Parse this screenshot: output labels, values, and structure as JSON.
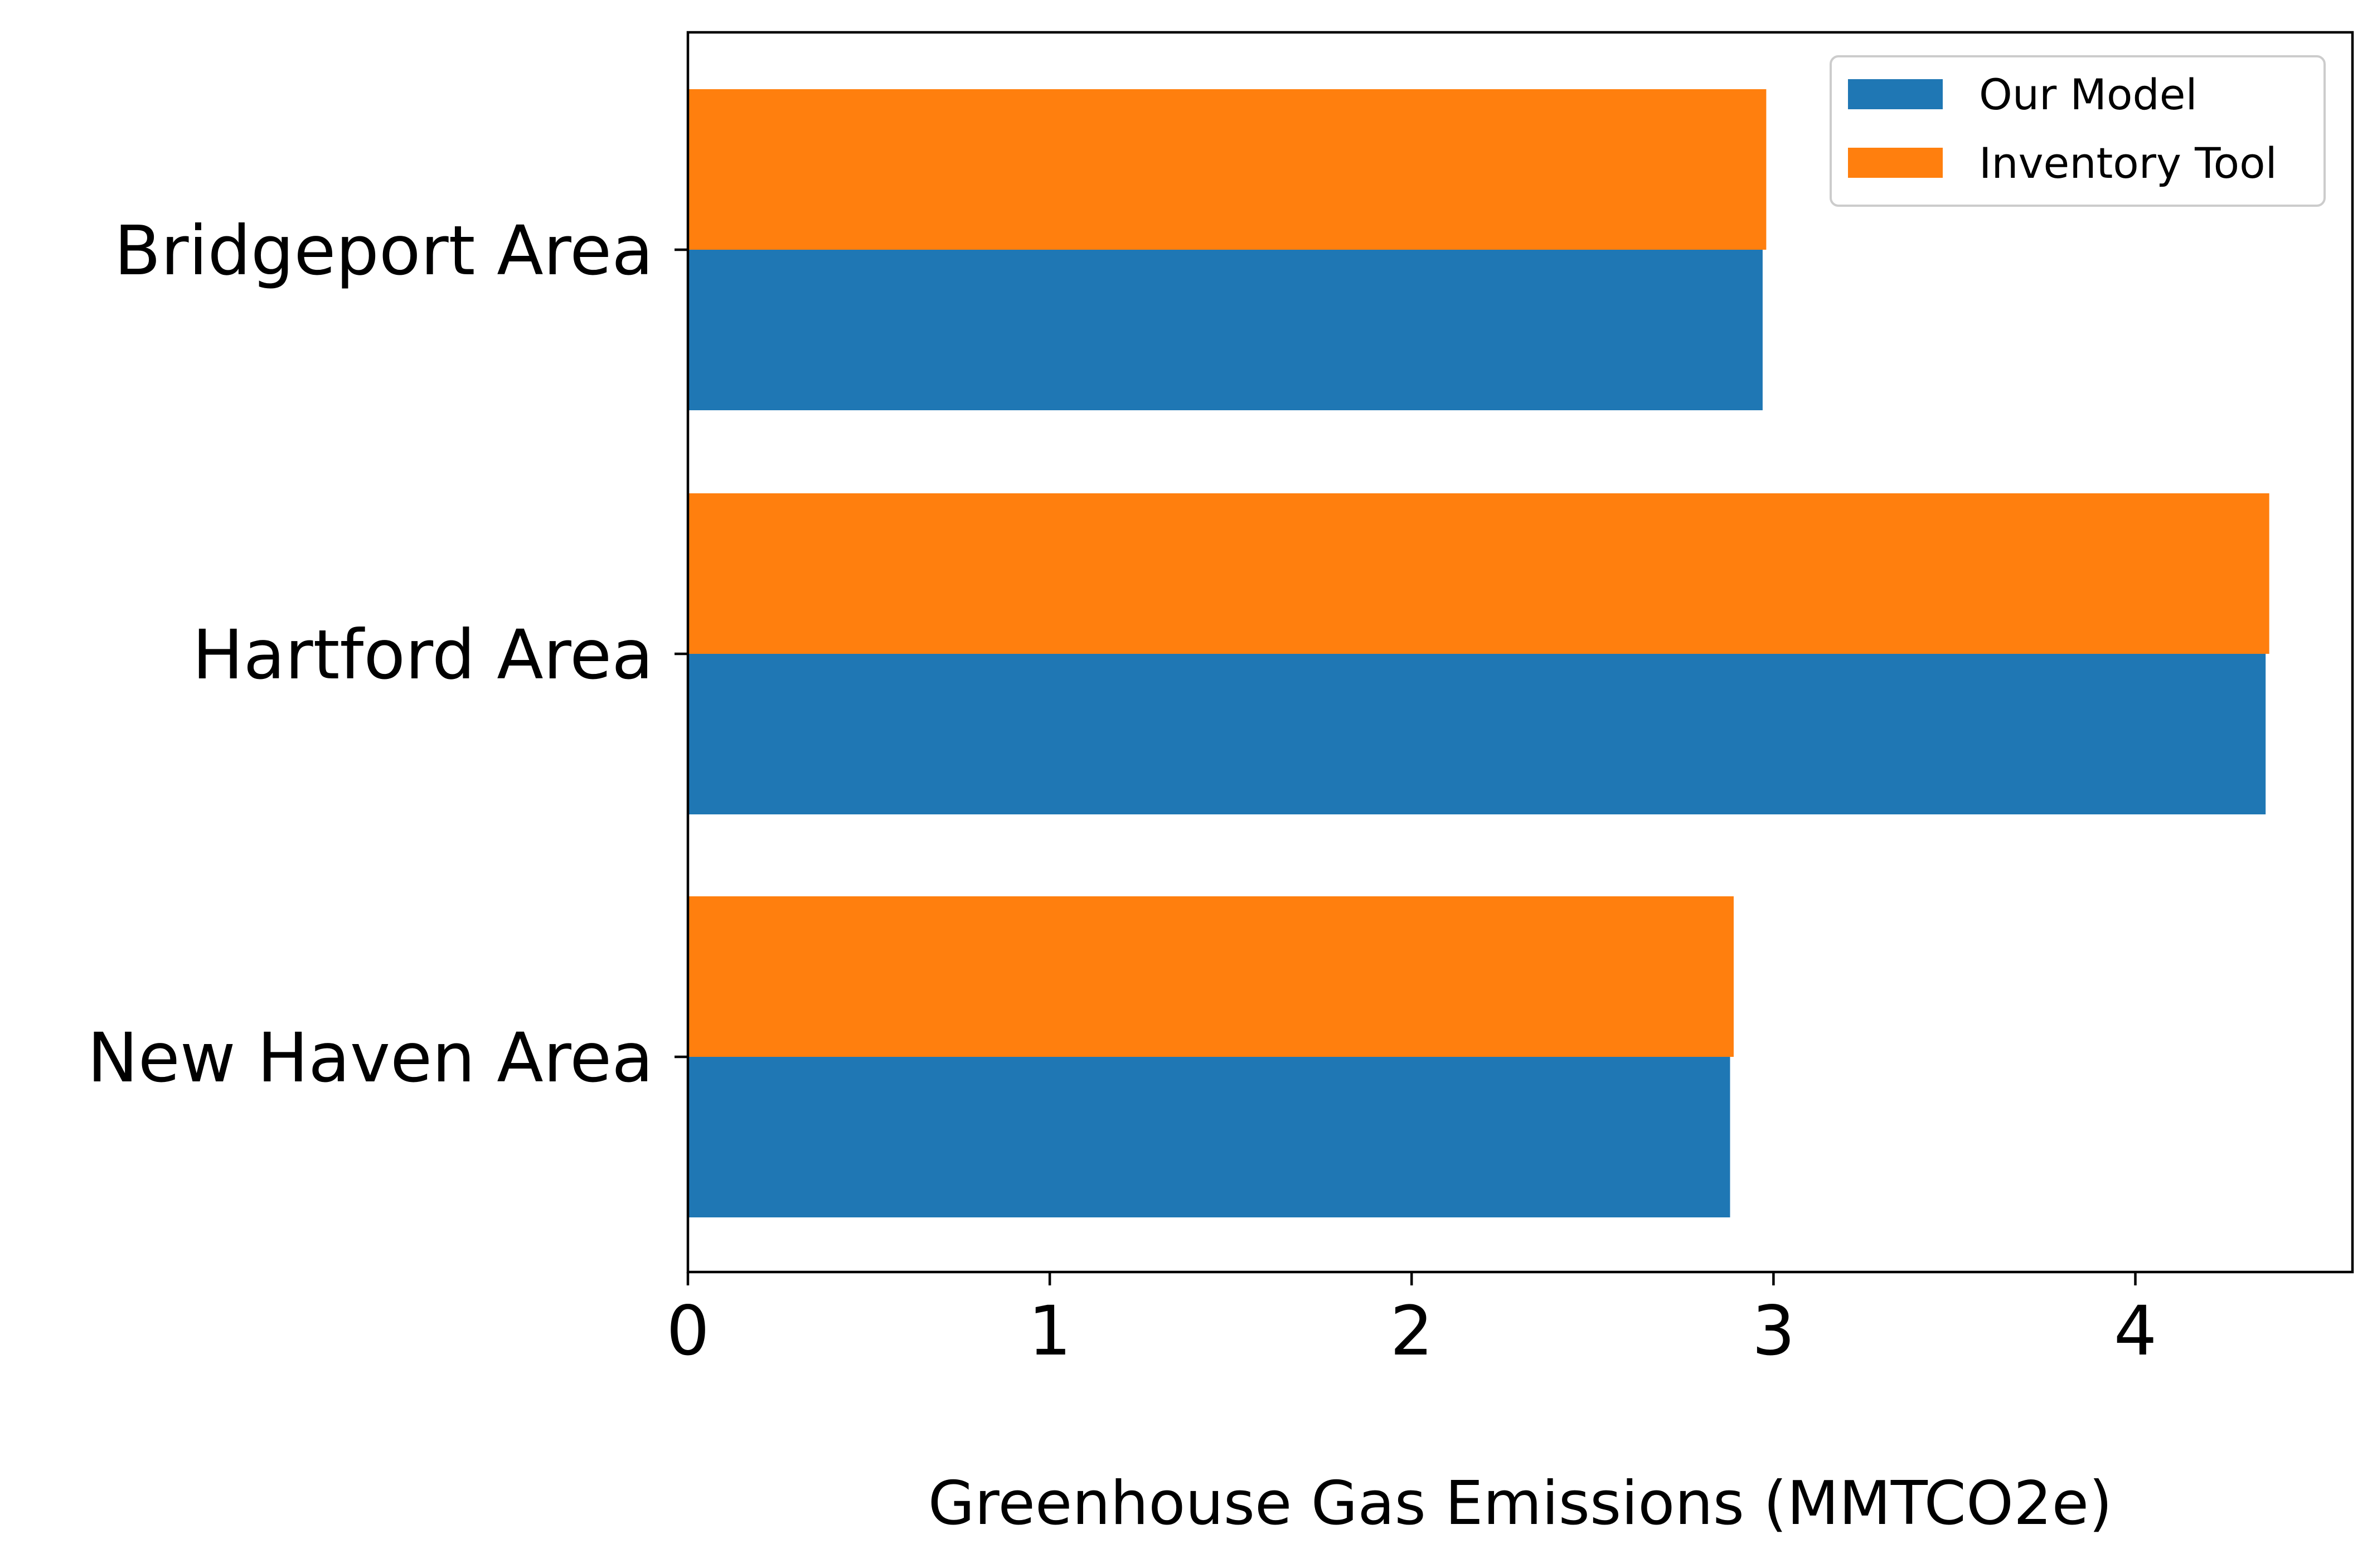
{
  "chart_data": {
    "type": "bar",
    "orientation": "horizontal",
    "categories": [
      "Bridgeport Area",
      "Hartford Area",
      "New Haven Area"
    ],
    "series": [
      {
        "name": "Our Model",
        "values": [
          2.97,
          4.36,
          2.88
        ],
        "color": "#1f77b4"
      },
      {
        "name": "Inventory Tool",
        "values": [
          2.98,
          4.37,
          2.89
        ],
        "color": "#ff7f0e"
      }
    ],
    "title": "",
    "xlabel": "Greenhouse Gas Emissions (MMTCO2e)",
    "ylabel": "",
    "xlim": [
      0,
      4.6
    ],
    "xticks": [
      "0",
      "1",
      "2",
      "3",
      "4"
    ],
    "grid": false,
    "legend_position": "top-right"
  }
}
